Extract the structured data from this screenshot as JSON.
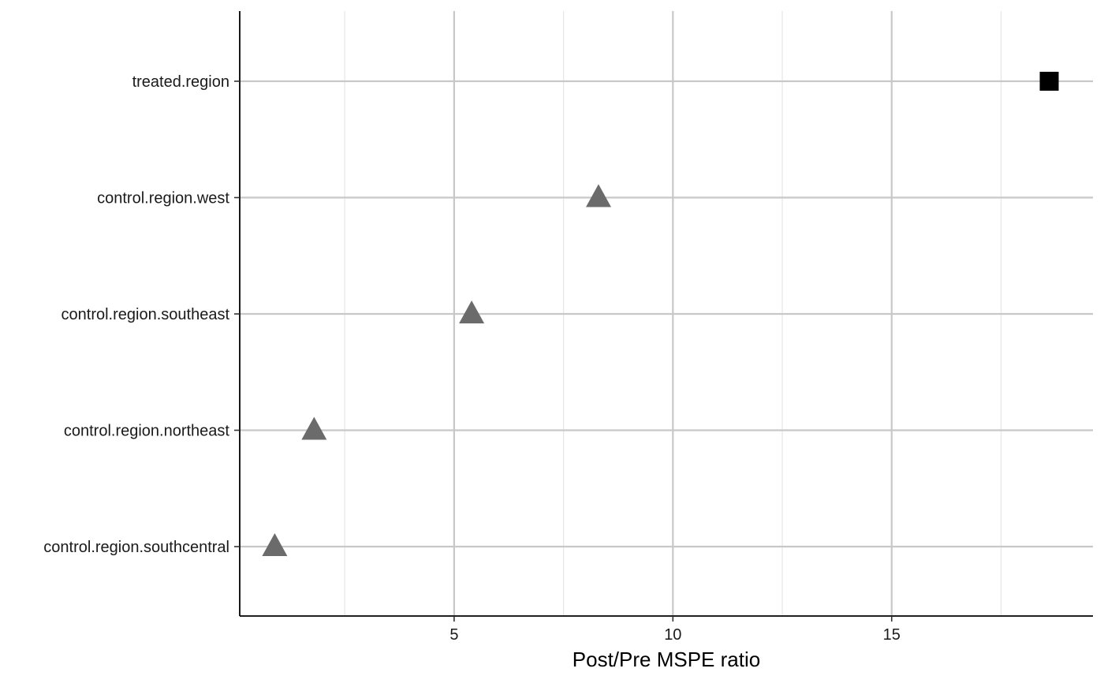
{
  "chart_data": {
    "type": "scatter",
    "title": "",
    "xlabel": "Post/Pre MSPE ratio",
    "ylabel": "",
    "xlim": [
      0.1,
      19.6
    ],
    "x_ticks": [
      5,
      10,
      15
    ],
    "x_minor_gridlines": [
      2.5,
      7.5,
      12.5,
      17.5
    ],
    "grid": true,
    "legend": "none",
    "categories": [
      "treated.region",
      "control.region.west",
      "control.region.southeast",
      "control.region.northeast",
      "control.region.southcentral"
    ],
    "points": [
      {
        "category": "treated.region",
        "x": 18.6,
        "marker": "square",
        "color": "#000000"
      },
      {
        "category": "control.region.west",
        "x": 8.3,
        "marker": "triangle",
        "color": "#6b6b6b"
      },
      {
        "category": "control.region.southeast",
        "x": 5.4,
        "marker": "triangle",
        "color": "#6b6b6b"
      },
      {
        "category": "control.region.northeast",
        "x": 1.8,
        "marker": "triangle",
        "color": "#6b6b6b"
      },
      {
        "category": "control.region.southcentral",
        "x": 0.9,
        "marker": "triangle",
        "color": "#6b6b6b"
      }
    ]
  }
}
